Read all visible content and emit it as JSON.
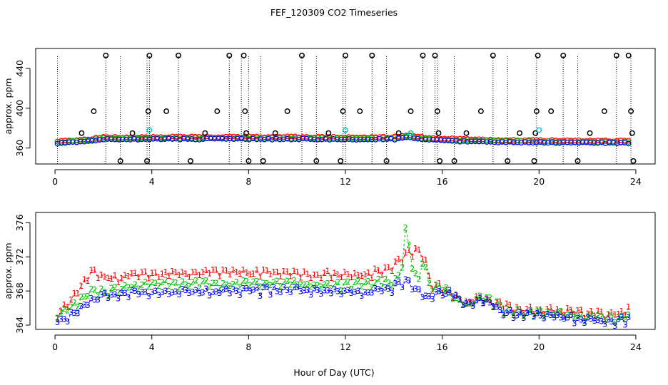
{
  "title": "FEF_120309  CO2 Timeseries",
  "xlabel": "Hour of Day (UTC)",
  "colors": {
    "s1": "#ff0000",
    "s2": "#00c000",
    "s3": "#0000ff",
    "outlier": "#000000",
    "cyan": "#00c8c8",
    "axis": "#000000"
  },
  "chart_data": [
    {
      "type": "scatter",
      "panel": "top",
      "ylabel": "approx. ppm",
      "xlim": [
        -0.8,
        24.8
      ],
      "ylim": [
        344,
        460
      ],
      "xticks": [
        0,
        4,
        8,
        12,
        16,
        20,
        24
      ],
      "yticks": [
        360,
        400,
        440
      ],
      "baseline_anchor": [
        [
          0,
          364.8
        ],
        [
          1,
          366
        ],
        [
          2,
          368.5
        ],
        [
          4,
          369
        ],
        [
          6,
          369
        ],
        [
          8,
          369
        ],
        [
          10,
          369
        ],
        [
          12,
          368.5
        ],
        [
          14,
          368.8
        ],
        [
          14.6,
          371
        ],
        [
          15.4,
          368
        ],
        [
          16,
          367.5
        ],
        [
          17,
          366.5
        ],
        [
          18,
          366
        ],
        [
          20,
          365.5
        ],
        [
          22,
          365.2
        ],
        [
          23.7,
          365
        ]
      ],
      "spike_hours": [
        0.1,
        2.1,
        2.7,
        3.8,
        3.9,
        5.1,
        7.2,
        7.7,
        8.0,
        8.5,
        10.2,
        10.8,
        11.9,
        12.0,
        13.1,
        13.7,
        15.2,
        15.7,
        15.8,
        16.5,
        18.1,
        18.7,
        19.9,
        21.0,
        21.6,
        23.2,
        23.8
      ],
      "outliers": [
        {
          "x": 1.1,
          "y": 375
        },
        {
          "x": 1.6,
          "y": 397
        },
        {
          "x": 2.1,
          "y": 453
        },
        {
          "x": 2.7,
          "y": 347
        },
        {
          "x": 3.2,
          "y": 375
        },
        {
          "x": 3.8,
          "y": 347
        },
        {
          "x": 3.85,
          "y": 397
        },
        {
          "x": 3.9,
          "y": 453
        },
        {
          "x": 4.6,
          "y": 397
        },
        {
          "x": 5.1,
          "y": 453
        },
        {
          "x": 5.6,
          "y": 347
        },
        {
          "x": 6.2,
          "y": 375
        },
        {
          "x": 6.7,
          "y": 397
        },
        {
          "x": 7.2,
          "y": 453
        },
        {
          "x": 7.8,
          "y": 453
        },
        {
          "x": 7.85,
          "y": 397
        },
        {
          "x": 7.9,
          "y": 375
        },
        {
          "x": 8.0,
          "y": 347
        },
        {
          "x": 8.6,
          "y": 347
        },
        {
          "x": 9.1,
          "y": 375
        },
        {
          "x": 9.6,
          "y": 397
        },
        {
          "x": 10.2,
          "y": 453
        },
        {
          "x": 10.8,
          "y": 347
        },
        {
          "x": 11.3,
          "y": 375
        },
        {
          "x": 11.8,
          "y": 347
        },
        {
          "x": 11.9,
          "y": 397
        },
        {
          "x": 12.0,
          "y": 453
        },
        {
          "x": 12.6,
          "y": 397
        },
        {
          "x": 13.1,
          "y": 453
        },
        {
          "x": 13.7,
          "y": 347
        },
        {
          "x": 14.2,
          "y": 375
        },
        {
          "x": 14.7,
          "y": 397
        },
        {
          "x": 15.2,
          "y": 453
        },
        {
          "x": 15.7,
          "y": 453
        },
        {
          "x": 15.8,
          "y": 397
        },
        {
          "x": 15.85,
          "y": 375
        },
        {
          "x": 15.9,
          "y": 347
        },
        {
          "x": 16.5,
          "y": 347
        },
        {
          "x": 17.0,
          "y": 375
        },
        {
          "x": 17.6,
          "y": 397
        },
        {
          "x": 18.1,
          "y": 453
        },
        {
          "x": 18.7,
          "y": 347
        },
        {
          "x": 19.2,
          "y": 375
        },
        {
          "x": 19.8,
          "y": 347
        },
        {
          "x": 19.85,
          "y": 375
        },
        {
          "x": 19.9,
          "y": 397
        },
        {
          "x": 19.95,
          "y": 453
        },
        {
          "x": 20.5,
          "y": 397
        },
        {
          "x": 21.0,
          "y": 453
        },
        {
          "x": 21.6,
          "y": 347
        },
        {
          "x": 22.1,
          "y": 375
        },
        {
          "x": 22.7,
          "y": 397
        },
        {
          "x": 23.2,
          "y": 453
        },
        {
          "x": 23.7,
          "y": 453
        },
        {
          "x": 23.8,
          "y": 397
        },
        {
          "x": 23.85,
          "y": 375
        },
        {
          "x": 23.9,
          "y": 347
        }
      ],
      "cyan_points": [
        {
          "x": 3.9,
          "y": 378
        },
        {
          "x": 12.0,
          "y": 378
        },
        {
          "x": 14.7,
          "y": 375
        },
        {
          "x": 20.0,
          "y": 378
        }
      ]
    },
    {
      "type": "scatter",
      "panel": "bottom",
      "ylabel": "approx. ppm",
      "xlim": [
        -0.8,
        24.8
      ],
      "ylim": [
        363.5,
        377.2
      ],
      "xticks": [
        0,
        4,
        8,
        12,
        16,
        20,
        24
      ],
      "yticks": [
        364,
        368,
        372,
        376
      ],
      "series": [
        {
          "name": "1",
          "values_anchor": [
            [
              0,
              365.3
            ],
            [
              0.5,
              366.5
            ],
            [
              1,
              368.5
            ],
            [
              1.5,
              370.5
            ],
            [
              2,
              370
            ],
            [
              2.5,
              369.5
            ],
            [
              3,
              370
            ],
            [
              4,
              370.2
            ],
            [
              6,
              370.3
            ],
            [
              8,
              370.3
            ],
            [
              10,
              370.2
            ],
            [
              12,
              370
            ],
            [
              13,
              370.2
            ],
            [
              14,
              371
            ],
            [
              14.5,
              372.5
            ],
            [
              15,
              373
            ],
            [
              15.3,
              372
            ],
            [
              15.5,
              369
            ],
            [
              16,
              368.5
            ],
            [
              16.5,
              367.5
            ],
            [
              17,
              366.5
            ],
            [
              17.5,
              367.5
            ],
            [
              18,
              367
            ],
            [
              18.5,
              366.5
            ],
            [
              19,
              366
            ],
            [
              20,
              366
            ],
            [
              21,
              365.8
            ],
            [
              22,
              365.5
            ],
            [
              23,
              365.3
            ],
            [
              23.7,
              366
            ]
          ]
        },
        {
          "name": "2",
          "values_anchor": [
            [
              0,
              365
            ],
            [
              0.5,
              366
            ],
            [
              1,
              367
            ],
            [
              1.5,
              368
            ],
            [
              2,
              368
            ],
            [
              2.5,
              368.2
            ],
            [
              3,
              368.6
            ],
            [
              4,
              369
            ],
            [
              6,
              369
            ],
            [
              8,
              369
            ],
            [
              10,
              369
            ],
            [
              12,
              368.8
            ],
            [
              13,
              369
            ],
            [
              14,
              369.3
            ],
            [
              14.3,
              370
            ],
            [
              14.5,
              376
            ],
            [
              14.7,
              372
            ],
            [
              15,
              369
            ],
            [
              15.2,
              372
            ],
            [
              15.5,
              368.5
            ],
            [
              16,
              368.5
            ],
            [
              16.5,
              367.5
            ],
            [
              17,
              366.5
            ],
            [
              17.5,
              367.5
            ],
            [
              18,
              367
            ],
            [
              18.5,
              366
            ],
            [
              19,
              365.6
            ],
            [
              20,
              365.6
            ],
            [
              21,
              365.4
            ],
            [
              22,
              365.2
            ],
            [
              23,
              365
            ],
            [
              23.7,
              365.3
            ]
          ]
        },
        {
          "name": "3",
          "values_anchor": [
            [
              0,
              364.6
            ],
            [
              0.5,
              365
            ],
            [
              1,
              366
            ],
            [
              1.5,
              367
            ],
            [
              2,
              367.5
            ],
            [
              2.5,
              367.6
            ],
            [
              3,
              367.8
            ],
            [
              4,
              368
            ],
            [
              6,
              368
            ],
            [
              8,
              368.2
            ],
            [
              10,
              368.2
            ],
            [
              12,
              368
            ],
            [
              13,
              368
            ],
            [
              14,
              368.5
            ],
            [
              14.6,
              369.5
            ],
            [
              15,
              368
            ],
            [
              15.5,
              367.5
            ],
            [
              16,
              368
            ],
            [
              16.5,
              367.8
            ],
            [
              17,
              366.3
            ],
            [
              17.5,
              367
            ],
            [
              18,
              366.8
            ],
            [
              18.5,
              365.8
            ],
            [
              19,
              365.3
            ],
            [
              20,
              365.4
            ],
            [
              21,
              365
            ],
            [
              22,
              364.8
            ],
            [
              23,
              364.6
            ],
            [
              23.7,
              364.8
            ]
          ]
        }
      ]
    }
  ]
}
